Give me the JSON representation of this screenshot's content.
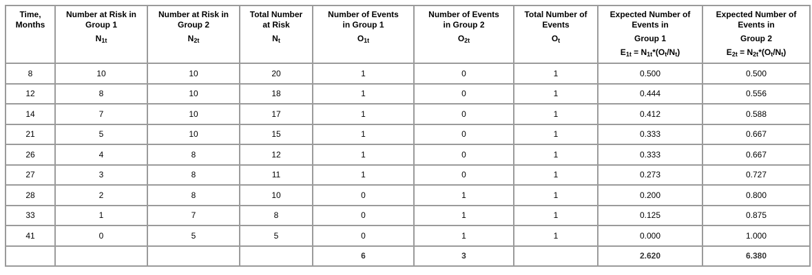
{
  "headers": [
    {
      "line1": "Time,",
      "line2": "Months",
      "symbol": "",
      "formula": ""
    },
    {
      "line1": "Number at Risk in",
      "line2": "Group 1",
      "symbol": "N",
      "symbol_sub": "1t",
      "formula": ""
    },
    {
      "line1": "Number at Risk in",
      "line2": "Group 2",
      "symbol": "N",
      "symbol_sub": "2t",
      "formula": ""
    },
    {
      "line1": "Total Number",
      "line2": "at Risk",
      "symbol": "N",
      "symbol_sub": "t",
      "formula": ""
    },
    {
      "line1": "Number of Events",
      "line2": "in Group 1",
      "symbol": "O",
      "symbol_sub": "1t",
      "formula": ""
    },
    {
      "line1": "Number of Events",
      "line2": "in Group 2",
      "symbol": "O",
      "symbol_sub": "2t",
      "formula": ""
    },
    {
      "line1": "Total Number of",
      "line2": "Events",
      "symbol": "O",
      "symbol_sub": "t",
      "formula": ""
    },
    {
      "line1": "Expected Number of",
      "line2": "Events in",
      "symbol": "Group 1",
      "symbol_sub": "",
      "formula_parts": [
        "E",
        "1t",
        " = N",
        "1t",
        "*(O",
        "t",
        "/N",
        "t",
        ")"
      ]
    },
    {
      "line1": "Expected Number of",
      "line2": "Events in",
      "symbol": "Group 2",
      "symbol_sub": "",
      "formula_parts": [
        "E",
        "2t",
        " = N",
        "2t",
        "*(O",
        "t",
        "/N",
        "t",
        ")"
      ]
    }
  ],
  "rows": [
    [
      "8",
      "10",
      "10",
      "20",
      "1",
      "0",
      "1",
      "0.500",
      "0.500"
    ],
    [
      "12",
      "8",
      "10",
      "18",
      "1",
      "0",
      "1",
      "0.444",
      "0.556"
    ],
    [
      "14",
      "7",
      "10",
      "17",
      "1",
      "0",
      "1",
      "0.412",
      "0.588"
    ],
    [
      "21",
      "5",
      "10",
      "15",
      "1",
      "0",
      "1",
      "0.333",
      "0.667"
    ],
    [
      "26",
      "4",
      "8",
      "12",
      "1",
      "0",
      "1",
      "0.333",
      "0.667"
    ],
    [
      "27",
      "3",
      "8",
      "11",
      "1",
      "0",
      "1",
      "0.273",
      "0.727"
    ],
    [
      "28",
      "2",
      "8",
      "10",
      "0",
      "1",
      "1",
      "0.200",
      "0.800"
    ],
    [
      "33",
      "1",
      "7",
      "8",
      "0",
      "1",
      "1",
      "0.125",
      "0.875"
    ],
    [
      "41",
      "0",
      "5",
      "5",
      "0",
      "1",
      "1",
      "0.000",
      "1.000"
    ]
  ],
  "totals": [
    "",
    "",
    "",
    "",
    "6",
    "3",
    "",
    "2.620",
    "6.380"
  ]
}
